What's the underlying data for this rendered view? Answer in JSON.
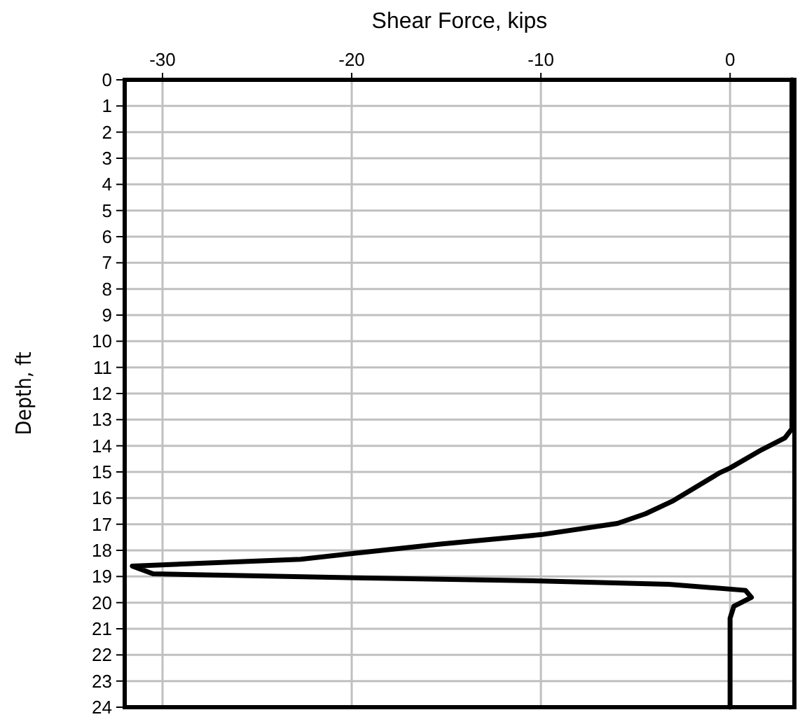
{
  "chart_data": {
    "type": "line",
    "xlabel": "Shear Force, kips",
    "ylabel": "Depth, ft",
    "xlim": [
      -32,
      3.4
    ],
    "xticks": [
      -30,
      -20,
      -10,
      0
    ],
    "ylim": [
      24,
      0
    ],
    "yticks": [
      0,
      1,
      2,
      3,
      4,
      5,
      6,
      7,
      8,
      9,
      10,
      11,
      12,
      13,
      14,
      15,
      16,
      17,
      18,
      19,
      20,
      21,
      22,
      23,
      24
    ],
    "grid": true,
    "line_style": "solid",
    "marker": "none",
    "series": [
      {
        "color": "#000000",
        "x": [
          3.27,
          3.27,
          2.9,
          1.67,
          0,
          -0.54,
          -3.0,
          -4.47,
          -5.95,
          -10,
          -15.3,
          -19.7,
          -22.7,
          -31.6,
          -30.5,
          -19.7,
          -10,
          -3.24,
          0.81,
          1.13,
          0.2,
          0,
          0
        ],
        "values": [
          0,
          13.35,
          13.7,
          14.15,
          14.85,
          15.03,
          16.1,
          16.6,
          16.97,
          17.4,
          17.76,
          18.1,
          18.34,
          18.6,
          18.9,
          19.05,
          19.17,
          19.3,
          19.53,
          19.8,
          20.14,
          20.6,
          24
        ]
      }
    ]
  }
}
